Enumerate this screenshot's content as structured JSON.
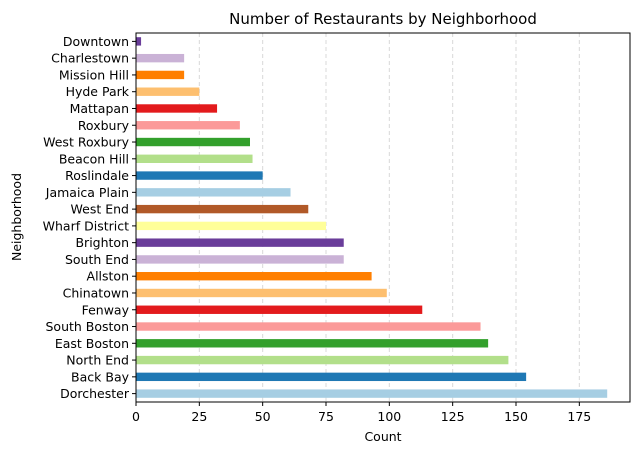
{
  "chart_data": {
    "type": "bar",
    "orientation": "horizontal",
    "title": "Number of Restaurants by Neighborhood",
    "xlabel": "Count",
    "ylabel": "Neighborhood",
    "xlim": [
      0,
      195
    ],
    "xticks": [
      0,
      25,
      50,
      75,
      100,
      125,
      150,
      175
    ],
    "grid": "vertical dashed",
    "categories": [
      "Dorchester",
      "Back Bay",
      "North End",
      "East Boston",
      "South Boston",
      "Fenway",
      "Chinatown",
      "Allston",
      "South End",
      "Brighton",
      "Wharf District",
      "West End",
      "Jamaica Plain",
      "Roslindale",
      "Beacon Hill",
      "West Roxbury",
      "Roxbury",
      "Mattapan",
      "Hyde Park",
      "Mission Hill",
      "Charlestown",
      "Downtown"
    ],
    "values": [
      186,
      154,
      147,
      139,
      136,
      113,
      99,
      93,
      82,
      82,
      75,
      68,
      61,
      50,
      46,
      45,
      41,
      32,
      25,
      19,
      19,
      2
    ],
    "colors": [
      "#a6cee3",
      "#1f78b4",
      "#b2df8a",
      "#33a02c",
      "#fb9a99",
      "#e31a1c",
      "#fdbf6f",
      "#ff7f00",
      "#cab2d6",
      "#6a3d9a",
      "#ffff99",
      "#b15928",
      "#a6cee3",
      "#1f78b4",
      "#b2df8a",
      "#33a02c",
      "#fb9a99",
      "#e31a1c",
      "#fdbf6f",
      "#ff7f00",
      "#cab2d6",
      "#6a3d9a"
    ]
  }
}
